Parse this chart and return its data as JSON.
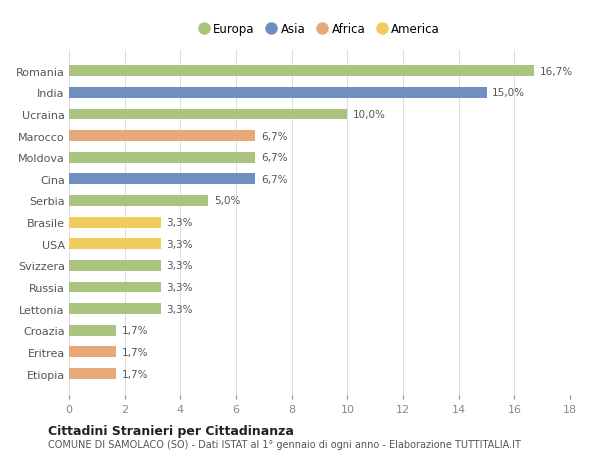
{
  "countries": [
    "Romania",
    "India",
    "Ucraina",
    "Marocco",
    "Moldova",
    "Cina",
    "Serbia",
    "Brasile",
    "USA",
    "Svizzera",
    "Russia",
    "Lettonia",
    "Croazia",
    "Eritrea",
    "Etiopia"
  ],
  "values": [
    16.7,
    15.0,
    10.0,
    6.7,
    6.7,
    6.7,
    5.0,
    3.3,
    3.3,
    3.3,
    3.3,
    3.3,
    1.7,
    1.7,
    1.7
  ],
  "labels": [
    "16,7%",
    "15,0%",
    "10,0%",
    "6,7%",
    "6,7%",
    "6,7%",
    "5,0%",
    "3,3%",
    "3,3%",
    "3,3%",
    "3,3%",
    "3,3%",
    "1,7%",
    "1,7%",
    "1,7%"
  ],
  "continents": [
    "Europa",
    "Asia",
    "Europa",
    "Africa",
    "Europa",
    "Asia",
    "Europa",
    "America",
    "America",
    "Europa",
    "Europa",
    "Europa",
    "Europa",
    "Africa",
    "Africa"
  ],
  "continent_colors": {
    "Europa": "#a8c47e",
    "Asia": "#6f8fc0",
    "Africa": "#e8a878",
    "America": "#f0cc60"
  },
  "legend_order": [
    "Europa",
    "Asia",
    "Africa",
    "America"
  ],
  "title": "Cittadini Stranieri per Cittadinanza",
  "subtitle": "COMUNE DI SAMOLACO (SO) - Dati ISTAT al 1° gennaio di ogni anno - Elaborazione TUTTITALIA.IT",
  "xlim": [
    0,
    18
  ],
  "xticks": [
    0,
    2,
    4,
    6,
    8,
    10,
    12,
    14,
    16,
    18
  ],
  "bg_color": "#ffffff",
  "grid_color": "#dddddd",
  "bar_height": 0.5
}
